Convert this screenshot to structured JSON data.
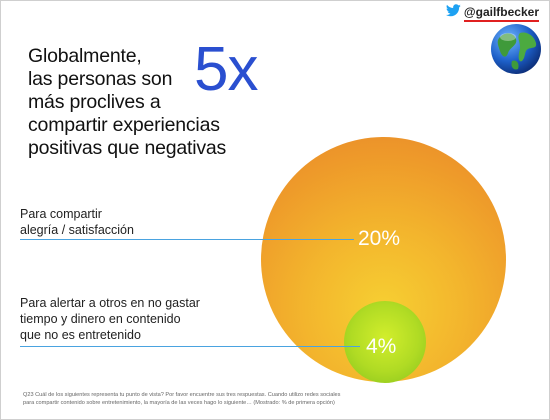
{
  "header": {
    "twitter_handle": "@gailfbecker",
    "icons": [
      "twitter-bird-icon",
      "globe-icon"
    ],
    "brand_color": "#1da1f2"
  },
  "headline": {
    "lines": [
      "Globalmente,",
      "las personas son",
      "más proclives a",
      "compartir experiencias",
      "positivas que negativas"
    ],
    "big_number": "5x"
  },
  "items": [
    {
      "label_lines": [
        "Para compartir",
        "alegría / satisfacción"
      ],
      "percent": "20%",
      "circle_color": "#f2a52c"
    },
    {
      "label_lines": [
        "Para alertar a otros en no gastar",
        "tiempo y dinero en contenido",
        "que no es entretenido"
      ],
      "percent": "4%",
      "circle_color": "#a6d423"
    }
  ],
  "footnote": {
    "lines": [
      "Q23 Cuál de los siguientes representa tu punto de vista? Por favor encuentre sus tres respuestas. Cuando utilizo redes sociales",
      "para compartir contenido sobre entretenimiento, la mayoría de las veces hago lo siguiente… (Mostrado: % de primera opción)"
    ]
  },
  "colors": {
    "accent_blue": "#2a4fd0",
    "connector_line": "#4aa3e0",
    "handle_underline": "#e02020"
  }
}
